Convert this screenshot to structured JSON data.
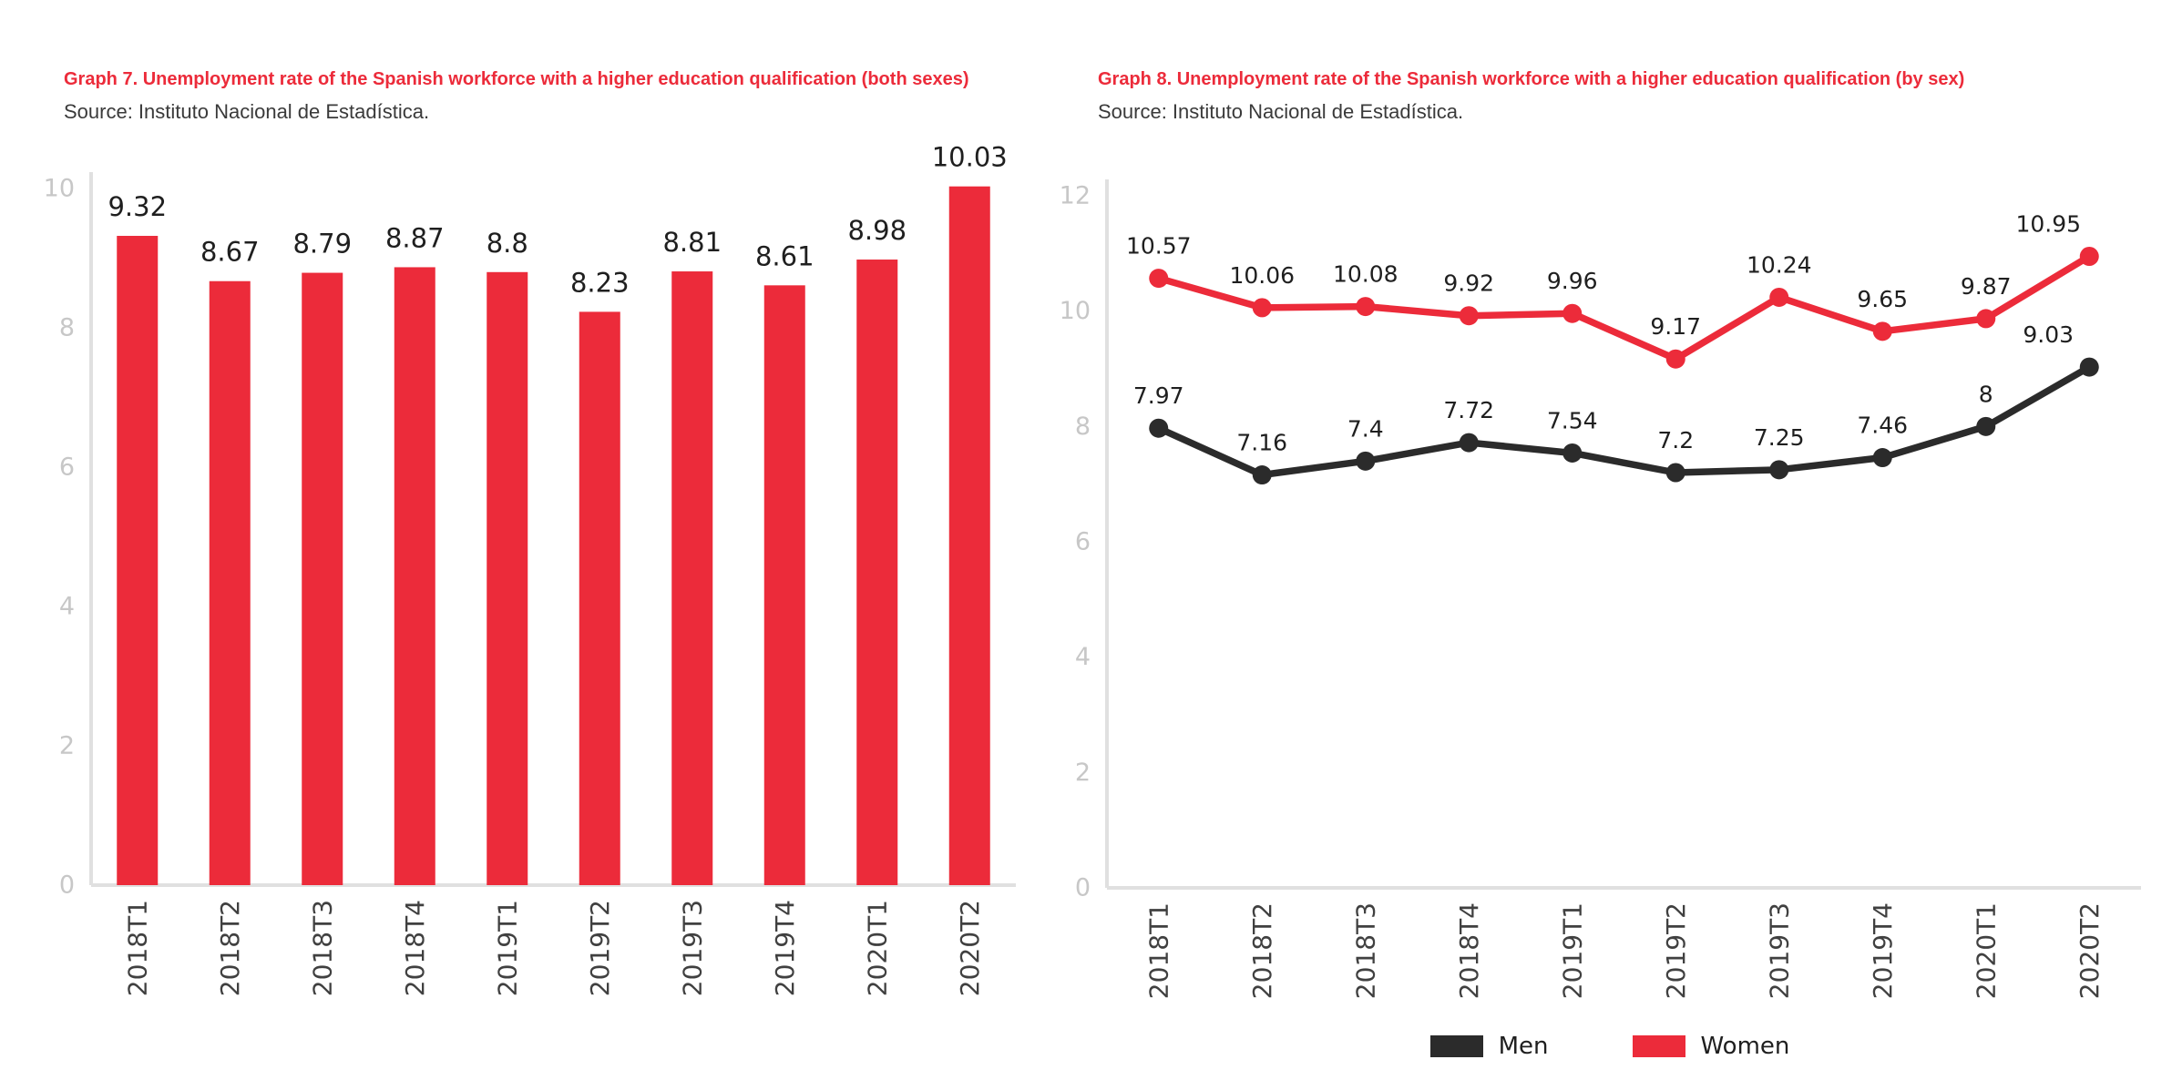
{
  "colors": {
    "accent_red": "#EC2B3A",
    "series_black": "#2B2B2B",
    "tick_label": "#C7C7C7",
    "axis_line": "#E0E0E0",
    "value_label": "#1F1F1F",
    "category_label": "#404040",
    "source_text": "#3A3A3A",
    "background": "#FFFFFF"
  },
  "chart_data": [
    {
      "type": "bar",
      "title": "Graph 7. Unemployment rate of the Spanish workforce with a higher education qualification (both sexes)",
      "source": "Source: Instituto Nacional de Estadística.",
      "categories": [
        "2018T1",
        "2018T2",
        "2018T3",
        "2018T4",
        "2019T1",
        "2019T2",
        "2019T3",
        "2019T4",
        "2020T1",
        "2020T2"
      ],
      "values": [
        9.32,
        8.67,
        8.79,
        8.87,
        8.8,
        8.23,
        8.81,
        8.61,
        8.98,
        10.03
      ],
      "bar_color": "#EC2B3A",
      "xlabel": "",
      "ylabel": "",
      "ylim": [
        0,
        10
      ],
      "yticks": [
        0,
        2,
        4,
        6,
        8,
        10
      ],
      "grid": false,
      "legend_position": "none",
      "data_labels": true
    },
    {
      "type": "line",
      "title": "Graph 8. Unemployment rate of the Spanish workforce with a higher education qualification (by sex)",
      "source": "Source: Instituto Nacional de Estadística.",
      "categories": [
        "2018T1",
        "2018T2",
        "2018T3",
        "2018T4",
        "2019T1",
        "2019T2",
        "2019T3",
        "2019T4",
        "2020T1",
        "2020T2"
      ],
      "series": [
        {
          "name": "Men",
          "color": "#2B2B2B",
          "values": [
            7.97,
            7.16,
            7.4,
            7.72,
            7.54,
            7.2,
            7.25,
            7.46,
            8,
            9.03
          ]
        },
        {
          "name": "Women",
          "color": "#EC2B3A",
          "values": [
            10.57,
            10.06,
            10.08,
            9.92,
            9.96,
            9.17,
            10.24,
            9.65,
            9.87,
            10.95
          ]
        }
      ],
      "xlabel": "",
      "ylabel": "",
      "ylim": [
        0,
        12
      ],
      "yticks": [
        0,
        2,
        4,
        6,
        8,
        10,
        12
      ],
      "grid": false,
      "legend_position": "bottom",
      "data_labels": true
    }
  ]
}
